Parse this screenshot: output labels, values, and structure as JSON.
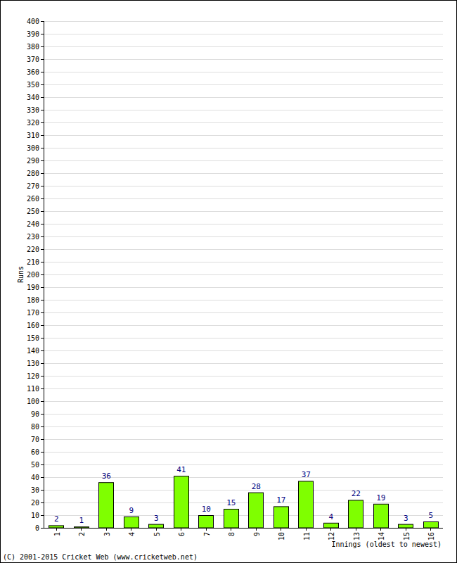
{
  "chart_data": {
    "type": "bar",
    "x_label": "Innings (oldest to newest)",
    "y_label": "Runs",
    "annotations": [
      "(C) 2001-2015 Cricket Web (www.cricketweb.net)"
    ],
    "categories": [
      "1",
      "2",
      "3",
      "4",
      "5",
      "6",
      "7",
      "8",
      "9",
      "10",
      "11",
      "12",
      "13",
      "14",
      "15",
      "16"
    ],
    "values": [
      2,
      1,
      36,
      9,
      3,
      41,
      10,
      15,
      28,
      17,
      37,
      4,
      22,
      19,
      3,
      5
    ],
    "color": "#7fff00",
    "data_labels": true,
    "grid": true,
    "ylim": [
      0,
      400
    ],
    "yticks": [
      0,
      10,
      20,
      30,
      40,
      50,
      60,
      70,
      80,
      90,
      100,
      110,
      120,
      130,
      140,
      150,
      160,
      170,
      180,
      190,
      200,
      210,
      220,
      230,
      240,
      250,
      260,
      270,
      280,
      290,
      300,
      310,
      320,
      330,
      340,
      350,
      360,
      370,
      380,
      390,
      400
    ]
  }
}
